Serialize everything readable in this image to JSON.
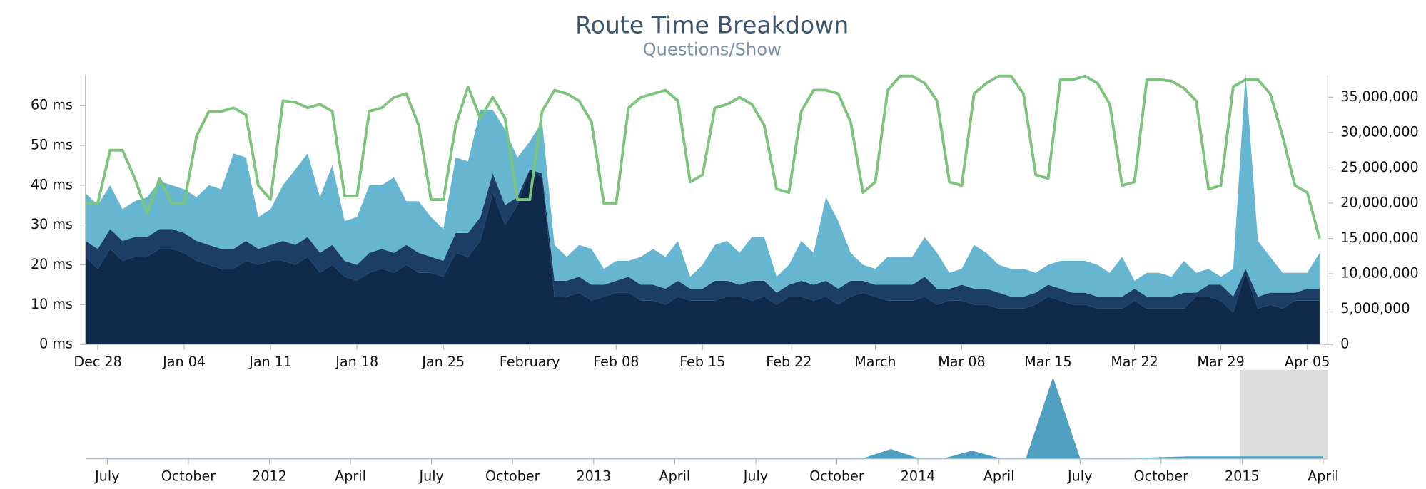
{
  "chart_data": [
    {
      "type": "area",
      "title": "Route Time Breakdown",
      "subtitle": "Questions/Show",
      "stacked": true,
      "categories": [
        null,
        "Dec 28",
        null,
        null,
        null,
        null,
        null,
        null,
        "Jan 04",
        null,
        null,
        null,
        null,
        null,
        null,
        "Jan 11",
        null,
        null,
        null,
        null,
        null,
        null,
        "Jan 18",
        null,
        null,
        null,
        null,
        null,
        null,
        "Jan 25",
        null,
        null,
        null,
        null,
        null,
        null,
        "February",
        null,
        null,
        null,
        null,
        null,
        null,
        "Feb 08",
        null,
        null,
        null,
        null,
        null,
        null,
        "Feb 15",
        null,
        null,
        null,
        null,
        null,
        null,
        "Feb 22",
        null,
        null,
        null,
        null,
        null,
        null,
        "March",
        null,
        null,
        null,
        null,
        null,
        null,
        "Mar 08",
        null,
        null,
        null,
        null,
        null,
        null,
        "Mar 15",
        null,
        null,
        null,
        null,
        null,
        null,
        "Mar 22",
        null,
        null,
        null,
        null,
        null,
        null,
        "Mar 29",
        null,
        null,
        null,
        null,
        null,
        null,
        "Apr 05",
        null
      ],
      "series": [
        {
          "color": "#0f2a4a",
          "values": [
            22,
            19,
            24,
            21,
            22,
            22,
            24,
            24,
            23,
            21,
            20,
            19,
            19,
            21,
            20,
            21,
            21,
            20,
            22,
            18,
            20,
            17,
            16,
            18,
            19,
            18,
            20,
            18,
            18,
            17,
            23,
            22,
            26,
            38,
            30,
            35,
            44,
            42,
            12,
            12,
            13,
            11,
            12,
            13,
            13,
            11,
            11,
            10,
            12,
            11,
            11,
            11,
            12,
            12,
            11,
            12,
            10,
            12,
            12,
            11,
            12,
            10,
            12,
            13,
            12,
            11,
            11,
            11,
            12,
            10,
            11,
            11,
            10,
            10,
            9,
            9,
            9,
            10,
            12,
            11,
            10,
            10,
            9,
            9,
            9,
            11,
            9,
            9,
            9,
            9,
            12,
            12,
            11,
            8,
            18,
            9,
            10,
            9,
            11,
            11,
            11
          ]
        },
        {
          "color": "#1c3e66",
          "values": [
            4,
            5,
            5,
            5,
            5,
            5,
            5,
            5,
            5,
            5,
            5,
            5,
            5,
            5,
            4,
            4,
            5,
            5,
            5,
            5,
            5,
            4,
            4,
            5,
            5,
            5,
            5,
            5,
            4,
            4,
            5,
            6,
            6,
            5,
            5,
            2,
            0,
            1,
            4,
            4,
            4,
            4,
            3,
            3,
            4,
            4,
            4,
            4,
            4,
            3,
            3,
            5,
            4,
            3,
            5,
            4,
            3,
            3,
            4,
            4,
            4,
            4,
            4,
            3,
            3,
            4,
            4,
            4,
            5,
            4,
            3,
            4,
            4,
            4,
            4,
            3,
            3,
            3,
            3,
            3,
            3,
            3,
            3,
            3,
            3,
            3,
            3,
            3,
            3,
            4,
            1,
            3,
            4,
            4,
            1,
            3,
            3,
            4,
            2,
            3,
            3
          ]
        },
        {
          "color": "#66b6d2",
          "values": [
            12,
            11,
            11,
            8,
            9,
            10,
            12,
            11,
            11,
            11,
            15,
            15,
            24,
            21,
            8,
            9,
            14,
            19,
            21,
            14,
            20,
            10,
            12,
            17,
            16,
            19,
            11,
            13,
            10,
            8,
            19,
            18,
            27,
            16,
            19,
            10,
            7,
            13,
            9,
            6,
            8,
            9,
            4,
            5,
            4,
            7,
            9,
            8,
            10,
            3,
            6,
            9,
            10,
            8,
            11,
            11,
            4,
            5,
            10,
            8,
            21,
            17,
            7,
            4,
            4,
            7,
            7,
            7,
            10,
            9,
            4,
            4,
            11,
            9,
            7,
            7,
            7,
            5,
            5,
            7,
            8,
            8,
            8,
            6,
            10,
            2,
            6,
            6,
            5,
            8,
            5,
            4,
            2,
            7,
            49,
            14,
            9,
            5,
            5,
            4,
            9
          ]
        },
        {
          "type": "line",
          "axis": "y2",
          "color": "#7cc47a",
          "values": [
            20000000,
            20000000,
            27500000,
            27500000,
            23500000,
            18500000,
            23500000,
            20000000,
            20000000,
            29500000,
            33000000,
            33000000,
            33500000,
            32500000,
            22500000,
            20500000,
            34500000,
            34300000,
            33500000,
            34000000,
            33000000,
            21000000,
            21000000,
            33000000,
            33500000,
            35000000,
            35500000,
            31000000,
            20500000,
            20500000,
            31000000,
            36500000,
            32000000,
            35000000,
            32000000,
            20500000,
            20500000,
            33000000,
            36000000,
            35500000,
            34500000,
            31500000,
            20000000,
            20000000,
            33500000,
            35000000,
            35500000,
            36000000,
            34500000,
            23000000,
            24000000,
            33500000,
            34000000,
            35000000,
            34000000,
            31000000,
            22000000,
            21500000,
            33000000,
            36000000,
            36000000,
            35500000,
            31500000,
            21500000,
            23000000,
            36000000,
            38000000,
            38000000,
            37000000,
            34500000,
            23000000,
            22500000,
            35500000,
            37000000,
            38000000,
            38000000,
            35500000,
            24000000,
            23500000,
            37500000,
            37500000,
            38000000,
            37000000,
            34000000,
            22500000,
            23000000,
            37500000,
            37500000,
            37300000,
            36300000,
            34500000,
            22000000,
            22500000,
            36500000,
            37500000,
            37500000,
            35500000,
            29500000,
            22500000,
            21500000,
            15000000
          ]
        }
      ],
      "ylim": [
        0,
        67.8
      ],
      "yticks": [
        {
          "value": 0,
          "label": "0 ms"
        },
        {
          "value": 10,
          "label": "10 ms"
        },
        {
          "value": 20,
          "label": "20 ms"
        },
        {
          "value": 30,
          "label": "30 ms"
        },
        {
          "value": 40,
          "label": "40 ms"
        },
        {
          "value": 50,
          "label": "50 ms"
        },
        {
          "value": 60,
          "label": "60 ms"
        }
      ],
      "y2lim": [
        0,
        38200000
      ],
      "y2ticks": [
        0,
        {
          "value": 5000000,
          "label": "5,000,000"
        },
        {
          "value": 10000000,
          "label": "10,000,000"
        },
        {
          "value": 15000000,
          "label": "15,000,000"
        },
        {
          "value": 20000000,
          "label": "20,000,000"
        },
        {
          "value": 25000000,
          "label": "25,000,000"
        },
        {
          "value": 30000000,
          "label": "30,000,000"
        },
        {
          "value": 35000000,
          "label": "35,000,000"
        }
      ]
    },
    {
      "type": "area",
      "categories": [
        "July",
        null,
        null,
        "October",
        null,
        null,
        "2012",
        null,
        null,
        "April",
        null,
        null,
        "July",
        null,
        null,
        "October",
        null,
        null,
        "2013",
        null,
        null,
        "April",
        null,
        null,
        "July",
        null,
        null,
        "October",
        null,
        null,
        "2014",
        null,
        null,
        "April",
        null,
        null,
        "July",
        null,
        null,
        "October",
        null,
        null,
        "2015",
        null,
        null,
        "April"
      ],
      "values": [
        1,
        1,
        1,
        1,
        1,
        1,
        1,
        1,
        1,
        1,
        1,
        1,
        1,
        1,
        1,
        1,
        1,
        1,
        1,
        1,
        1,
        1,
        1,
        1,
        1,
        1,
        1,
        1,
        1,
        12,
        1,
        1,
        10,
        1,
        1,
        100,
        1,
        1,
        1,
        2,
        3,
        3,
        3,
        3,
        3,
        3
      ],
      "color": "#4f9fc0",
      "ylim": [
        0,
        100
      ]
    }
  ]
}
